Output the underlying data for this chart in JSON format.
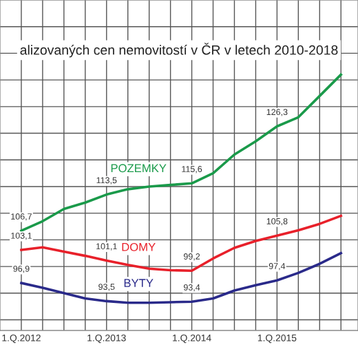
{
  "chart_data": {
    "type": "line",
    "title": "alizovaných cen nemovitostí v ČR v letech 2010-2018",
    "categories": [
      "1.Q.2012",
      null,
      null,
      null,
      "1.Q.2013",
      null,
      null,
      null,
      "1.Q.2014",
      null,
      null,
      null,
      "1.Q.2015",
      null,
      null,
      null
    ],
    "series": [
      {
        "name": "POZEMKY",
        "color": "#1a9a4a",
        "values": [
          106.7,
          108.5,
          110.8,
          112.0,
          113.5,
          114.5,
          115.0,
          115.3,
          115.6,
          117.5,
          121.0,
          123.5,
          126.3,
          128.0,
          132.0,
          136.0
        ],
        "value_labels": [
          "106,7",
          null,
          null,
          null,
          "113,5",
          null,
          null,
          null,
          "115,6",
          null,
          null,
          null,
          "126,3",
          null,
          null,
          null
        ]
      },
      {
        "name": "DOMY",
        "color": "#e8202a",
        "values": [
          103.1,
          103.6,
          102.8,
          102.0,
          101.1,
          100.3,
          99.6,
          99.3,
          99.2,
          101.5,
          103.5,
          104.8,
          105.8,
          106.8,
          108.0,
          109.5
        ],
        "value_labels": [
          "103,1",
          null,
          null,
          null,
          "101,1",
          null,
          null,
          null,
          "99,2",
          null,
          null,
          null,
          "105,8",
          null,
          null,
          null
        ]
      },
      {
        "name": "BYTY",
        "color": "#2a2a8a",
        "values": [
          96.9,
          96.0,
          95.0,
          94.0,
          93.5,
          93.2,
          93.2,
          93.3,
          93.4,
          94.0,
          95.5,
          96.5,
          97.4,
          98.8,
          100.5,
          102.5
        ],
        "value_labels": [
          "96,9",
          null,
          null,
          null,
          "93,5",
          null,
          null,
          null,
          "93,4",
          null,
          null,
          null,
          "97,4",
          null,
          null,
          null
        ]
      }
    ],
    "ylim": [
      88,
      150
    ],
    "yticks": [
      {
        "value": 90,
        "label": null
      },
      {
        "value": 95,
        "label": null
      },
      {
        "value": 100,
        "label": null
      },
      {
        "value": 105,
        "label": null
      },
      {
        "value": 110,
        "label": null
      },
      {
        "value": 115,
        "label": null
      },
      {
        "value": 120,
        "label": null
      },
      {
        "value": 125,
        "label": null
      },
      {
        "value": 130,
        "label": null
      },
      {
        "value": 135,
        "label": null
      },
      {
        "value": 140,
        "label": null
      },
      {
        "value": 145,
        "label": null
      }
    ],
    "tick_labels": "x",
    "grid": true,
    "legend": false,
    "marker": "none",
    "line_style": "solid"
  }
}
